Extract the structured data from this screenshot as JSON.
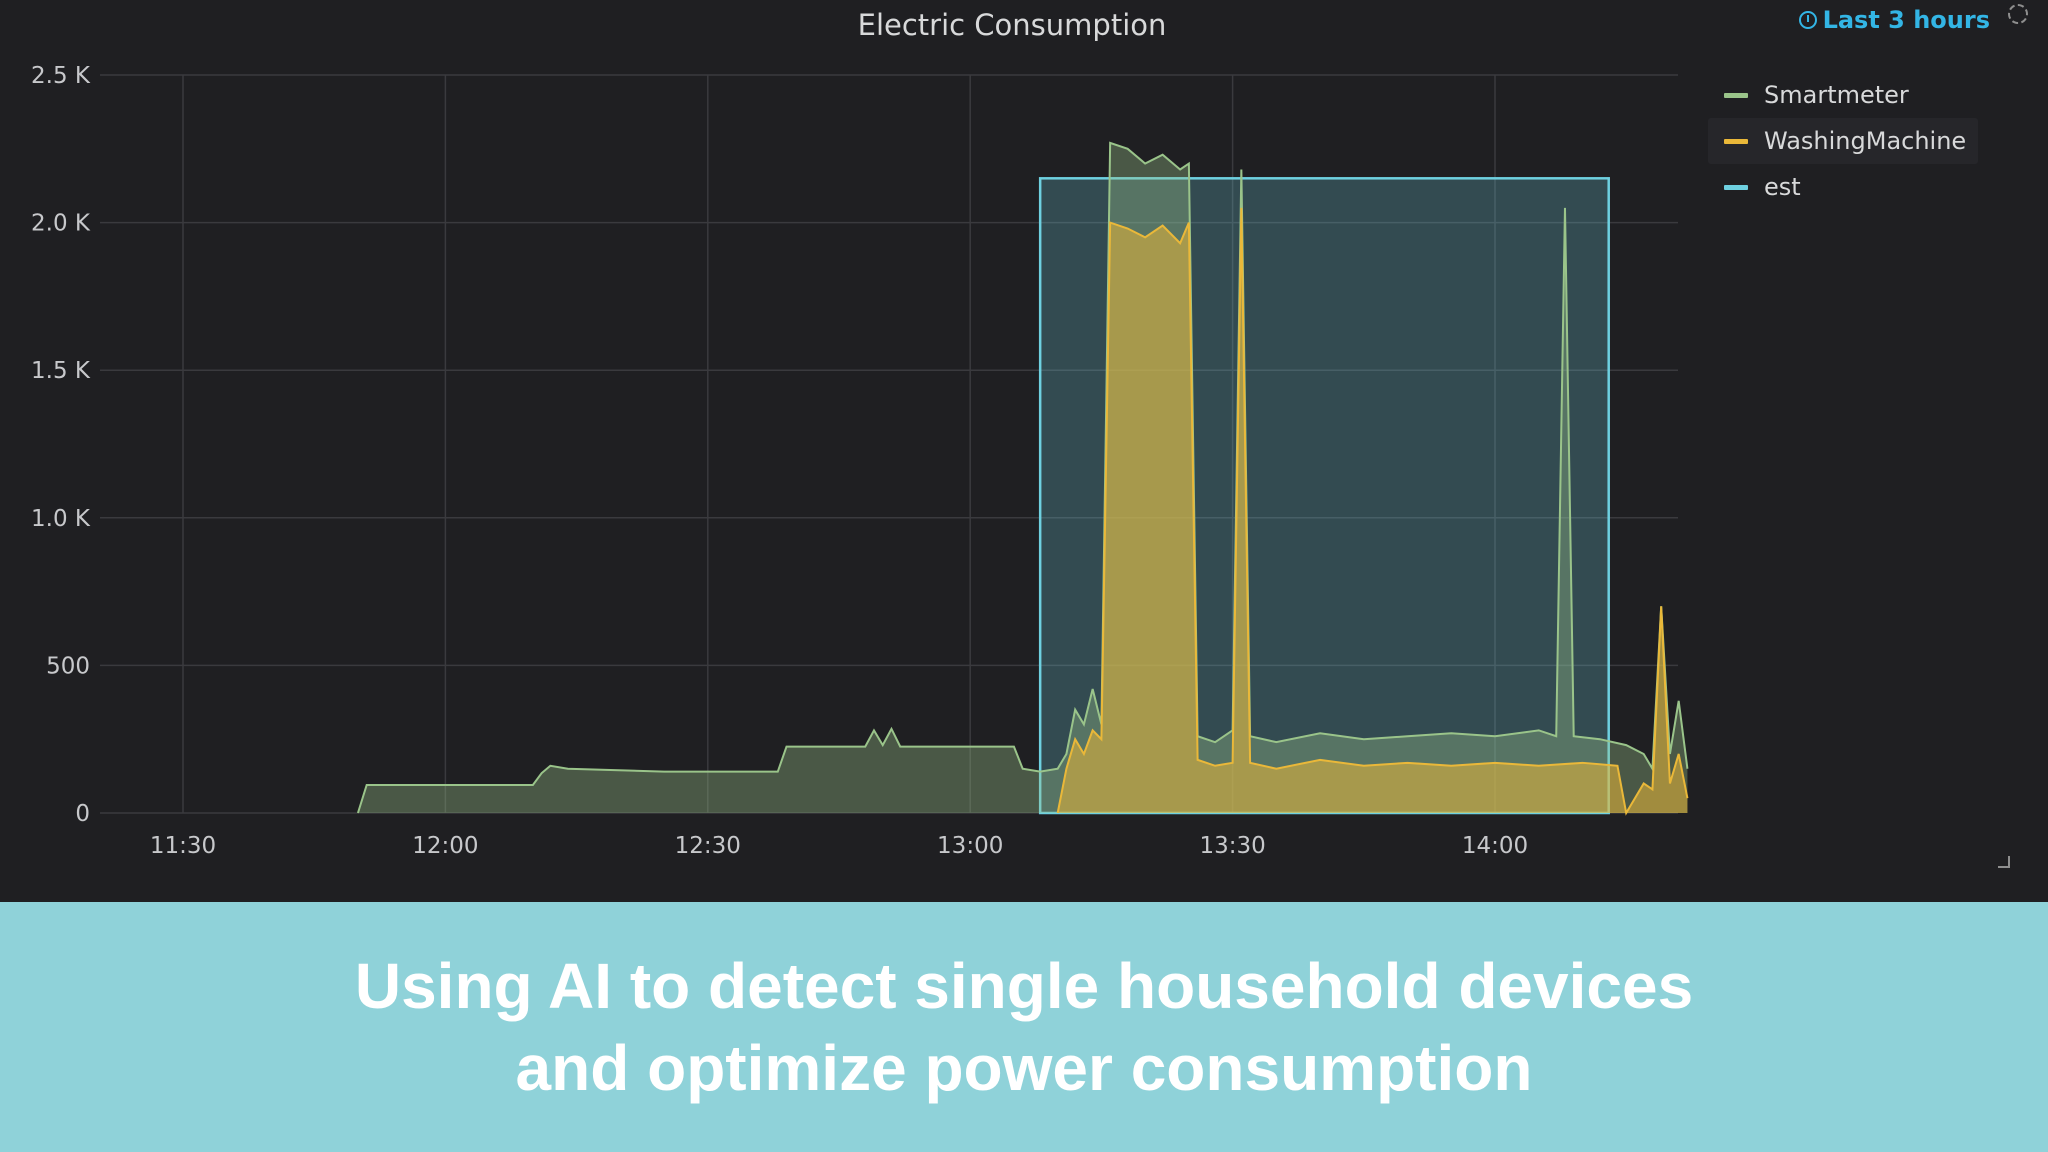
{
  "panel": {
    "title": "Electric Consumption",
    "time_range": "Last 3 hours",
    "icons": {
      "time_range": "clock-icon",
      "refresh": "refresh-icon",
      "resize": "resize-handle-icon"
    }
  },
  "chart_data": {
    "type": "area",
    "title": "Electric Consumption",
    "x_ticks": [
      "11:30",
      "12:00",
      "12:30",
      "13:00",
      "13:30",
      "14:00"
    ],
    "y_ticks": [
      "0",
      "500",
      "1.0 K",
      "1.5 K",
      "2.0 K",
      "2.5 K"
    ],
    "ylim": [
      0,
      2500
    ],
    "legend_position": "top-right",
    "grid": true,
    "series": [
      {
        "name": "Smartmeter",
        "color": "#9ac48a",
        "points": [
          [
            "11:50",
            0
          ],
          [
            "11:51",
            95
          ],
          [
            "12:10",
            95
          ],
          [
            "12:11",
            135
          ],
          [
            "12:12",
            160
          ],
          [
            "12:14",
            150
          ],
          [
            "12:25",
            140
          ],
          [
            "12:38",
            140
          ],
          [
            "12:39",
            225
          ],
          [
            "12:48",
            225
          ],
          [
            "12:49",
            280
          ],
          [
            "12:50",
            230
          ],
          [
            "12:51",
            285
          ],
          [
            "12:52",
            225
          ],
          [
            "13:05",
            225
          ],
          [
            "13:06",
            150
          ],
          [
            "13:08",
            140
          ],
          [
            "13:10",
            150
          ],
          [
            "13:11",
            200
          ],
          [
            "13:12",
            350
          ],
          [
            "13:13",
            300
          ],
          [
            "13:14",
            420
          ],
          [
            "13:15",
            300
          ],
          [
            "13:16",
            2270
          ],
          [
            "13:18",
            2250
          ],
          [
            "13:20",
            2200
          ],
          [
            "13:22",
            2230
          ],
          [
            "13:24",
            2180
          ],
          [
            "13:25",
            2200
          ],
          [
            "13:26",
            260
          ],
          [
            "13:28",
            240
          ],
          [
            "13:30",
            280
          ],
          [
            "13:31",
            2180
          ],
          [
            "13:32",
            260
          ],
          [
            "13:35",
            240
          ],
          [
            "13:40",
            270
          ],
          [
            "13:45",
            250
          ],
          [
            "13:50",
            260
          ],
          [
            "13:55",
            270
          ],
          [
            "14:00",
            260
          ],
          [
            "14:05",
            280
          ],
          [
            "14:07",
            260
          ],
          [
            "14:08",
            2050
          ],
          [
            "14:09",
            260
          ],
          [
            "14:12",
            250
          ],
          [
            "14:15",
            230
          ],
          [
            "14:17",
            200
          ],
          [
            "14:18",
            150
          ],
          [
            "14:19",
            700
          ],
          [
            "14:20",
            200
          ],
          [
            "14:21",
            380
          ],
          [
            "14:22",
            150
          ]
        ]
      },
      {
        "name": "WashingMachine",
        "color": "#eab839",
        "points": [
          [
            "13:10",
            0
          ],
          [
            "13:11",
            150
          ],
          [
            "13:12",
            250
          ],
          [
            "13:13",
            200
          ],
          [
            "13:14",
            280
          ],
          [
            "13:15",
            250
          ],
          [
            "13:16",
            2000
          ],
          [
            "13:18",
            1980
          ],
          [
            "13:20",
            1950
          ],
          [
            "13:22",
            1990
          ],
          [
            "13:24",
            1930
          ],
          [
            "13:25",
            2000
          ],
          [
            "13:26",
            180
          ],
          [
            "13:28",
            160
          ],
          [
            "13:30",
            170
          ],
          [
            "13:31",
            2050
          ],
          [
            "13:32",
            170
          ],
          [
            "13:35",
            150
          ],
          [
            "13:40",
            180
          ],
          [
            "13:45",
            160
          ],
          [
            "13:50",
            170
          ],
          [
            "13:55",
            160
          ],
          [
            "14:00",
            170
          ],
          [
            "14:05",
            160
          ],
          [
            "14:10",
            170
          ],
          [
            "14:14",
            160
          ],
          [
            "14:15",
            0
          ],
          [
            "14:17",
            100
          ],
          [
            "14:18",
            80
          ],
          [
            "14:19",
            700
          ],
          [
            "14:20",
            100
          ],
          [
            "14:21",
            200
          ],
          [
            "14:22",
            50
          ]
        ]
      },
      {
        "name": "est",
        "color": "#6ed0e0",
        "region": {
          "x_start": "13:08",
          "x_end": "14:13",
          "value": 2150
        }
      }
    ]
  },
  "caption": {
    "line1": "Using AI to detect single household devices",
    "line2": "and optimize power consumption"
  }
}
